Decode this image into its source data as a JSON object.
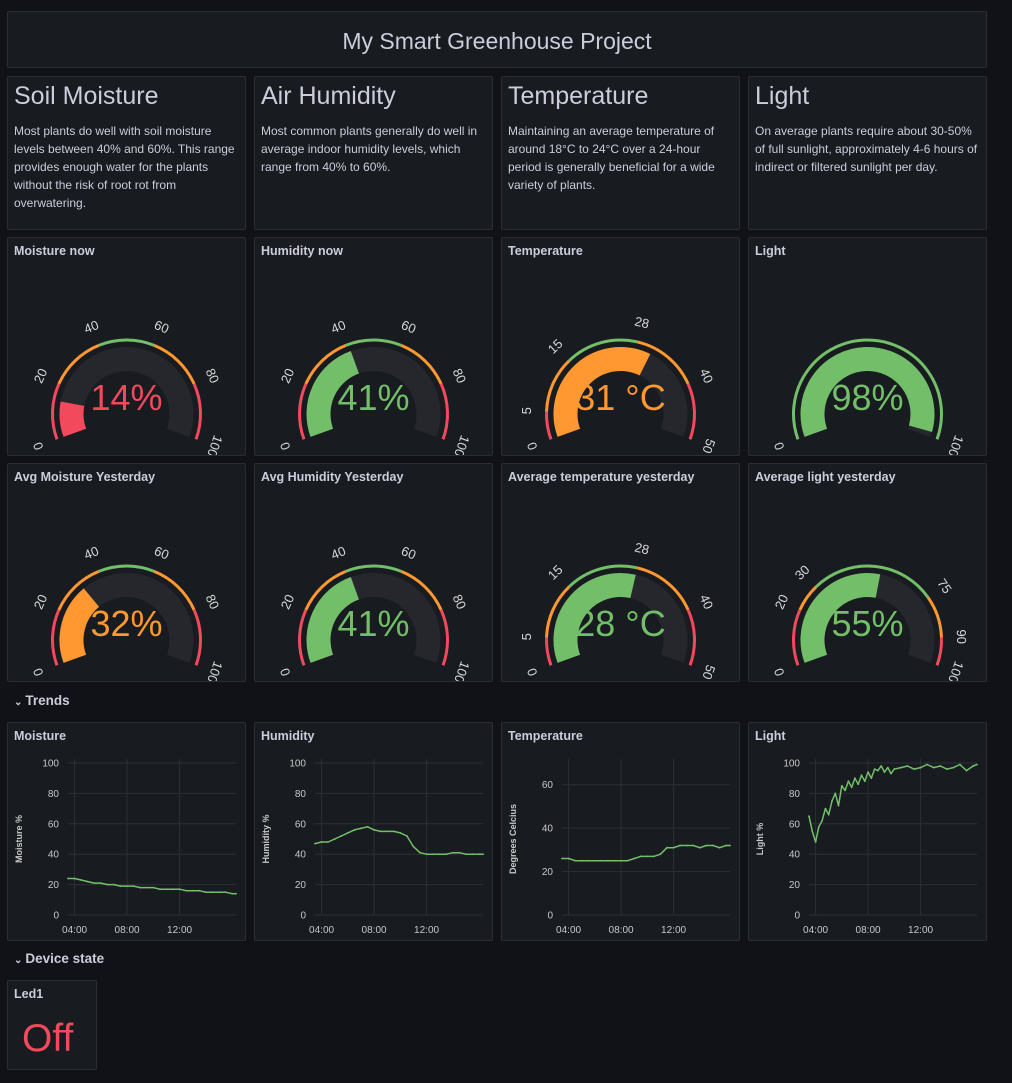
{
  "title": "My Smart Greenhouse Project",
  "text_panels": [
    {
      "heading": "Soil Moisture",
      "body": "Most plants do well with soil moisture levels between 40% and 60%. This range provides enough water for the plants without the risk of root rot from overwatering."
    },
    {
      "heading": "Air Humidity",
      "body": "Most common plants generally do well in average indoor humidity levels, which range from 40% to 60%."
    },
    {
      "heading": "Temperature",
      "body": "Maintaining an average temperature of around 18°C to 24°C over a 24-hour period is generally beneficial for a wide variety of plants."
    },
    {
      "heading": "Light",
      "body": "On average plants require about 30-50% of full sunlight, approximately 4-6 hours of indirect or filtered sunlight per day."
    }
  ],
  "gauges": [
    {
      "title": "Moisture now",
      "value": 14,
      "display": "14%",
      "min": 0,
      "max": 100,
      "color": "#f2495c",
      "ticks": [
        "0",
        "20",
        "40",
        "60",
        "80",
        "100"
      ],
      "thresholds": [
        {
          "from": 0,
          "to": 20,
          "color": "#f2495c"
        },
        {
          "from": 20,
          "to": 40,
          "color": "#ff9830"
        },
        {
          "from": 40,
          "to": 60,
          "color": "#73bf69"
        },
        {
          "from": 60,
          "to": 80,
          "color": "#ff9830"
        },
        {
          "from": 80,
          "to": 100,
          "color": "#f2495c"
        }
      ]
    },
    {
      "title": "Humidity now",
      "value": 41,
      "display": "41%",
      "min": 0,
      "max": 100,
      "color": "#73bf69",
      "ticks": [
        "0",
        "20",
        "40",
        "60",
        "80",
        "100"
      ],
      "thresholds": [
        {
          "from": 0,
          "to": 20,
          "color": "#f2495c"
        },
        {
          "from": 20,
          "to": 40,
          "color": "#ff9830"
        },
        {
          "from": 40,
          "to": 60,
          "color": "#73bf69"
        },
        {
          "from": 60,
          "to": 80,
          "color": "#ff9830"
        },
        {
          "from": 80,
          "to": 100,
          "color": "#f2495c"
        }
      ]
    },
    {
      "title": "Temperature",
      "value": 31,
      "display": "31 °C",
      "min": 0,
      "max": 50,
      "color": "#ff9830",
      "ticks": [
        "0",
        "5",
        "15",
        "28",
        "40",
        "50"
      ],
      "thresholds": [
        {
          "from": 0,
          "to": 5,
          "color": "#f2495c"
        },
        {
          "from": 5,
          "to": 15,
          "color": "#ff9830"
        },
        {
          "from": 15,
          "to": 28,
          "color": "#73bf69"
        },
        {
          "from": 28,
          "to": 40,
          "color": "#ff9830"
        },
        {
          "from": 40,
          "to": 50,
          "color": "#f2495c"
        }
      ]
    },
    {
      "title": "Light",
      "value": 98,
      "display": "98%",
      "min": 0,
      "max": 100,
      "color": "#73bf69",
      "ticks": [
        "0",
        "100"
      ],
      "thresholds": [
        {
          "from": 0,
          "to": 100,
          "color": "#73bf69"
        }
      ]
    },
    {
      "title": "Avg Moisture Yesterday",
      "value": 32,
      "display": "32%",
      "min": 0,
      "max": 100,
      "color": "#ff9830",
      "ticks": [
        "0",
        "20",
        "40",
        "60",
        "80",
        "100"
      ],
      "thresholds": [
        {
          "from": 0,
          "to": 20,
          "color": "#f2495c"
        },
        {
          "from": 20,
          "to": 40,
          "color": "#ff9830"
        },
        {
          "from": 40,
          "to": 60,
          "color": "#73bf69"
        },
        {
          "from": 60,
          "to": 80,
          "color": "#ff9830"
        },
        {
          "from": 80,
          "to": 100,
          "color": "#f2495c"
        }
      ]
    },
    {
      "title": "Avg Humidity Yesterday",
      "value": 41,
      "display": "41%",
      "min": 0,
      "max": 100,
      "color": "#73bf69",
      "ticks": [
        "0",
        "20",
        "40",
        "60",
        "80",
        "100"
      ],
      "thresholds": [
        {
          "from": 0,
          "to": 20,
          "color": "#f2495c"
        },
        {
          "from": 20,
          "to": 40,
          "color": "#ff9830"
        },
        {
          "from": 40,
          "to": 60,
          "color": "#73bf69"
        },
        {
          "from": 60,
          "to": 80,
          "color": "#ff9830"
        },
        {
          "from": 80,
          "to": 100,
          "color": "#f2495c"
        }
      ]
    },
    {
      "title": "Average temperature yesterday",
      "value": 28,
      "display": "28 °C",
      "min": 0,
      "max": 50,
      "color": "#73bf69",
      "ticks": [
        "0",
        "5",
        "15",
        "28",
        "40",
        "50"
      ],
      "thresholds": [
        {
          "from": 0,
          "to": 5,
          "color": "#f2495c"
        },
        {
          "from": 5,
          "to": 15,
          "color": "#ff9830"
        },
        {
          "from": 15,
          "to": 28,
          "color": "#73bf69"
        },
        {
          "from": 28,
          "to": 40,
          "color": "#ff9830"
        },
        {
          "from": 40,
          "to": 50,
          "color": "#f2495c"
        }
      ]
    },
    {
      "title": "Average light yesterday",
      "value": 55,
      "display": "55%",
      "min": 0,
      "max": 100,
      "color": "#73bf69",
      "ticks": [
        "0",
        "20",
        "30",
        "75",
        "90",
        "100"
      ],
      "thresholds": [
        {
          "from": 0,
          "to": 20,
          "color": "#f2495c"
        },
        {
          "from": 20,
          "to": 30,
          "color": "#ff9830"
        },
        {
          "from": 30,
          "to": 75,
          "color": "#73bf69"
        },
        {
          "from": 75,
          "to": 90,
          "color": "#ff9830"
        },
        {
          "from": 90,
          "to": 100,
          "color": "#f2495c"
        }
      ]
    }
  ],
  "rows": {
    "trends": "Trends",
    "device_state": "Device state"
  },
  "chart_data": [
    {
      "type": "line",
      "title": "Moisture",
      "ylabel": "Moisture %",
      "ylim": [
        0,
        100
      ],
      "yticks": [
        0,
        20,
        40,
        60,
        80,
        100
      ],
      "xticks": [
        "04:00",
        "08:00",
        "12:00"
      ],
      "xlim": [
        3.5,
        16.3
      ],
      "series": [
        {
          "x": [
            3.5,
            4.0,
            4.5,
            5.0,
            5.5,
            6.0,
            6.5,
            7.0,
            7.5,
            8.0,
            8.5,
            9.0,
            9.5,
            10.0,
            10.5,
            11.0,
            11.5,
            12.0,
            12.5,
            13.0,
            13.5,
            14.0,
            14.5,
            15.0,
            15.5,
            16.0,
            16.3
          ],
          "y": [
            24,
            24,
            23,
            22,
            21,
            21,
            20,
            20,
            19,
            19,
            19,
            18,
            18,
            18,
            17,
            17,
            17,
            17,
            16,
            16,
            16,
            15,
            15,
            15,
            15,
            14,
            14
          ]
        }
      ]
    },
    {
      "type": "line",
      "title": "Humidity",
      "ylabel": "Humidity %",
      "ylim": [
        0,
        100
      ],
      "yticks": [
        0,
        20,
        40,
        60,
        80,
        100
      ],
      "xticks": [
        "04:00",
        "08:00",
        "12:00"
      ],
      "xlim": [
        3.5,
        16.3
      ],
      "series": [
        {
          "x": [
            3.5,
            4.0,
            4.5,
            5.0,
            5.5,
            6.0,
            6.5,
            7.0,
            7.5,
            8.0,
            8.5,
            9.0,
            9.5,
            10.0,
            10.5,
            11.0,
            11.5,
            12.0,
            12.5,
            13.0,
            13.5,
            14.0,
            14.5,
            15.0,
            15.5,
            16.0,
            16.3
          ],
          "y": [
            47,
            48,
            48,
            50,
            52,
            54,
            56,
            57,
            58,
            56,
            55,
            55,
            55,
            54,
            52,
            45,
            41,
            40,
            40,
            40,
            40,
            41,
            41,
            40,
            40,
            40,
            40
          ]
        }
      ]
    },
    {
      "type": "line",
      "title": "Temperature",
      "ylabel": "Degrees Celcius",
      "ylim": [
        0,
        70
      ],
      "yticks": [
        0,
        20,
        40,
        60
      ],
      "xticks": [
        "04:00",
        "08:00",
        "12:00"
      ],
      "xlim": [
        3.5,
        16.3
      ],
      "series": [
        {
          "x": [
            3.5,
            4.0,
            4.5,
            5.0,
            5.5,
            6.0,
            6.5,
            7.0,
            7.5,
            8.0,
            8.5,
            9.0,
            9.5,
            10.0,
            10.5,
            11.0,
            11.5,
            12.0,
            12.5,
            13.0,
            13.5,
            14.0,
            14.5,
            15.0,
            15.5,
            16.0,
            16.3
          ],
          "y": [
            26,
            26,
            25,
            25,
            25,
            25,
            25,
            25,
            25,
            25,
            25,
            26,
            27,
            27,
            27,
            28,
            31,
            31,
            32,
            32,
            32,
            31,
            32,
            32,
            31,
            32,
            32
          ]
        }
      ]
    },
    {
      "type": "line",
      "title": "Light",
      "ylabel": "Light %",
      "ylim": [
        0,
        100
      ],
      "yticks": [
        0,
        20,
        40,
        60,
        80,
        100
      ],
      "xticks": [
        "04:00",
        "08:00",
        "12:00"
      ],
      "xlim": [
        3.5,
        16.3
      ],
      "series": [
        {
          "x": [
            3.5,
            3.75,
            4.0,
            4.25,
            4.5,
            4.75,
            5.0,
            5.25,
            5.5,
            5.75,
            6.0,
            6.25,
            6.5,
            6.75,
            7.0,
            7.25,
            7.5,
            7.75,
            8.0,
            8.25,
            8.5,
            8.75,
            9.0,
            9.25,
            9.5,
            9.75,
            10.0,
            10.5,
            11.0,
            11.5,
            12.0,
            12.5,
            13.0,
            13.5,
            14.0,
            14.5,
            15.0,
            15.5,
            16.0,
            16.3
          ],
          "y": [
            65,
            55,
            48,
            58,
            62,
            70,
            66,
            75,
            80,
            72,
            85,
            82,
            88,
            84,
            90,
            86,
            92,
            88,
            94,
            90,
            96,
            95,
            98,
            94,
            97,
            93,
            96,
            97,
            98,
            96,
            97,
            99,
            97,
            98,
            96,
            97,
            99,
            95,
            98,
            99
          ]
        }
      ]
    }
  ],
  "device": {
    "title": "Led1",
    "value": "Off",
    "color": "#f2495c"
  }
}
